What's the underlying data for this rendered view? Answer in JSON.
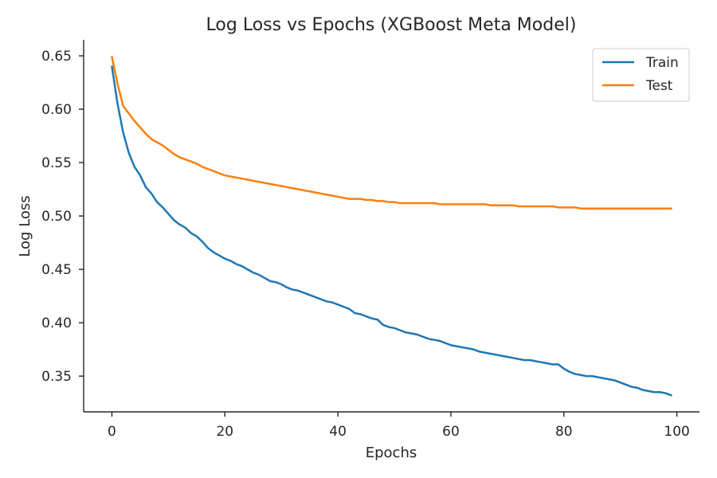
{
  "chart_data": {
    "type": "line",
    "title": "Log Loss vs Epochs (XGBoost Meta Model)",
    "xlabel": "Epochs",
    "ylabel": "Log Loss",
    "xlim": [
      -5,
      104
    ],
    "ylim": [
      0.3165,
      0.665
    ],
    "xticks": [
      0,
      20,
      40,
      60,
      80,
      100
    ],
    "yticks": [
      0.35,
      0.4,
      0.45,
      0.5,
      0.55,
      0.6,
      0.65
    ],
    "xtick_labels": [
      "0",
      "20",
      "40",
      "60",
      "80",
      "100"
    ],
    "ytick_labels": [
      "0.35",
      "0.40",
      "0.45",
      "0.50",
      "0.55",
      "0.60",
      "0.65"
    ],
    "grid": false,
    "legend": "top-right",
    "series": [
      {
        "name": "Train",
        "color": "#1f77b4",
        "x": [
          0,
          1,
          2,
          3,
          4,
          5,
          6,
          7,
          8,
          9,
          10,
          11,
          12,
          13,
          14,
          15,
          16,
          17,
          18,
          19,
          20,
          21,
          22,
          23,
          24,
          25,
          26,
          27,
          28,
          29,
          30,
          31,
          32,
          33,
          34,
          35,
          36,
          37,
          38,
          39,
          40,
          41,
          42,
          43,
          44,
          45,
          46,
          47,
          48,
          49,
          50,
          51,
          52,
          53,
          54,
          55,
          56,
          57,
          58,
          59,
          60,
          61,
          62,
          63,
          64,
          65,
          66,
          67,
          68,
          69,
          70,
          71,
          72,
          73,
          74,
          75,
          76,
          77,
          78,
          79,
          80,
          81,
          82,
          83,
          84,
          85,
          86,
          87,
          88,
          89,
          90,
          91,
          92,
          93,
          94,
          95,
          96,
          97,
          98,
          99
        ],
        "values": [
          0.64,
          0.605,
          0.578,
          0.559,
          0.546,
          0.538,
          0.527,
          0.521,
          0.513,
          0.508,
          0.502,
          0.496,
          0.492,
          0.489,
          0.484,
          0.481,
          0.476,
          0.47,
          0.466,
          0.463,
          0.46,
          0.458,
          0.455,
          0.453,
          0.45,
          0.447,
          0.445,
          0.442,
          0.439,
          0.438,
          0.436,
          0.433,
          0.431,
          0.43,
          0.428,
          0.426,
          0.424,
          0.422,
          0.42,
          0.419,
          0.417,
          0.415,
          0.413,
          0.409,
          0.408,
          0.406,
          0.404,
          0.403,
          0.398,
          0.396,
          0.395,
          0.393,
          0.391,
          0.39,
          0.389,
          0.387,
          0.385,
          0.384,
          0.383,
          0.381,
          0.379,
          0.378,
          0.377,
          0.376,
          0.375,
          0.373,
          0.372,
          0.371,
          0.37,
          0.369,
          0.368,
          0.367,
          0.366,
          0.365,
          0.365,
          0.364,
          0.363,
          0.362,
          0.361,
          0.361,
          0.357,
          0.354,
          0.352,
          0.351,
          0.35,
          0.35,
          0.349,
          0.348,
          0.347,
          0.346,
          0.344,
          0.342,
          0.34,
          0.339,
          0.337,
          0.336,
          0.335,
          0.335,
          0.334,
          0.332
        ]
      },
      {
        "name": "Test",
        "color": "#ff7f0e",
        "x": [
          0,
          1,
          2,
          3,
          4,
          5,
          6,
          7,
          8,
          9,
          10,
          11,
          12,
          13,
          14,
          15,
          16,
          17,
          18,
          19,
          20,
          21,
          22,
          23,
          24,
          25,
          26,
          27,
          28,
          29,
          30,
          31,
          32,
          33,
          34,
          35,
          36,
          37,
          38,
          39,
          40,
          41,
          42,
          43,
          44,
          45,
          46,
          47,
          48,
          49,
          50,
          51,
          52,
          53,
          54,
          55,
          56,
          57,
          58,
          59,
          60,
          61,
          62,
          63,
          64,
          65,
          66,
          67,
          68,
          69,
          70,
          71,
          72,
          73,
          74,
          75,
          76,
          77,
          78,
          79,
          80,
          81,
          82,
          83,
          84,
          85,
          86,
          87,
          88,
          89,
          90,
          91,
          92,
          93,
          94,
          95,
          96,
          97,
          98,
          99
        ],
        "values": [
          0.649,
          0.624,
          0.603,
          0.596,
          0.589,
          0.583,
          0.577,
          0.572,
          0.569,
          0.566,
          0.562,
          0.558,
          0.555,
          0.553,
          0.551,
          0.549,
          0.546,
          0.544,
          0.542,
          0.54,
          0.538,
          0.537,
          0.536,
          0.535,
          0.534,
          0.533,
          0.532,
          0.531,
          0.53,
          0.529,
          0.528,
          0.527,
          0.526,
          0.525,
          0.524,
          0.523,
          0.522,
          0.521,
          0.52,
          0.519,
          0.518,
          0.517,
          0.516,
          0.516,
          0.516,
          0.515,
          0.515,
          0.514,
          0.514,
          0.513,
          0.513,
          0.512,
          0.512,
          0.512,
          0.512,
          0.512,
          0.512,
          0.512,
          0.511,
          0.511,
          0.511,
          0.511,
          0.511,
          0.511,
          0.511,
          0.511,
          0.511,
          0.51,
          0.51,
          0.51,
          0.51,
          0.51,
          0.509,
          0.509,
          0.509,
          0.509,
          0.509,
          0.509,
          0.509,
          0.508,
          0.508,
          0.508,
          0.508,
          0.507,
          0.507,
          0.507,
          0.507,
          0.507,
          0.507,
          0.507,
          0.507,
          0.507,
          0.507,
          0.507,
          0.507,
          0.507,
          0.507,
          0.507,
          0.507,
          0.507
        ]
      }
    ]
  }
}
